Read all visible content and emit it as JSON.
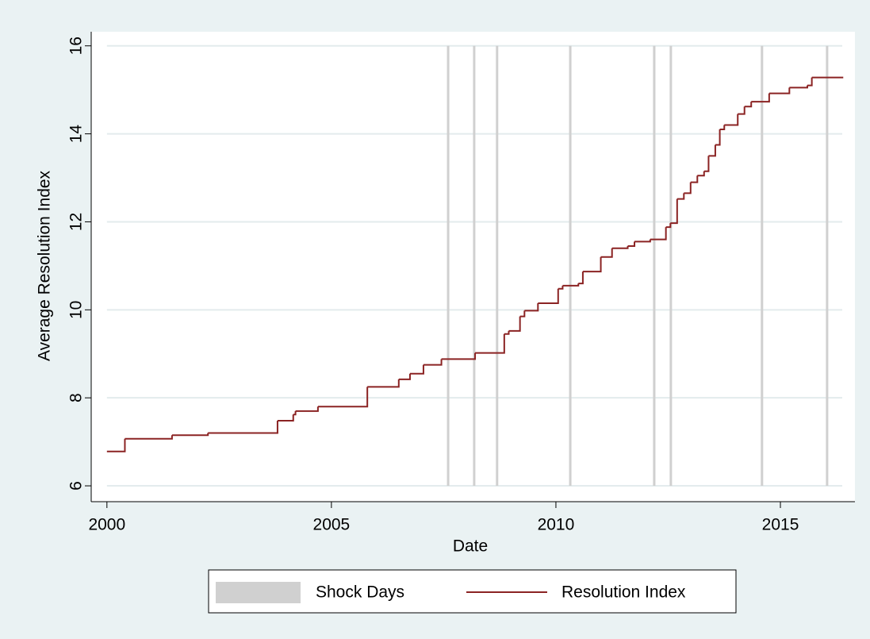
{
  "chart_data": {
    "type": "step",
    "x_label": "Date",
    "y_label": "Average Resolution Index",
    "xlim": [
      1999.65,
      2016.66
    ],
    "ylim": [
      5.64,
      16.32
    ],
    "xticks": [
      2000,
      2005,
      2010,
      2015
    ],
    "yticks": [
      6,
      8,
      10,
      12,
      14,
      16
    ],
    "grid": true,
    "shock_days": {
      "name": "Shock Days",
      "color": "#d0d0d0",
      "x": [
        2007.6,
        2008.18,
        2008.69,
        2010.32,
        2012.19,
        2012.56,
        2014.59,
        2016.04
      ]
    },
    "series": [
      {
        "name": "Resolution Index",
        "color": "#8b2323",
        "x": [
          2000.0,
          2000.4,
          2001.45,
          2002.25,
          2003.8,
          2004.15,
          2004.2,
          2004.7,
          2005.8,
          2006.5,
          2006.75,
          2007.05,
          2007.45,
          2008.2,
          2008.85,
          2008.95,
          2009.2,
          2009.3,
          2009.6,
          2010.05,
          2010.15,
          2010.5,
          2010.6,
          2011.0,
          2011.25,
          2011.6,
          2011.75,
          2012.1,
          2012.45,
          2012.55,
          2012.7,
          2012.85,
          2013.0,
          2013.15,
          2013.3,
          2013.4,
          2013.55,
          2013.65,
          2013.75,
          2014.05,
          2014.2,
          2014.35,
          2014.75,
          2015.2,
          2015.6,
          2015.7,
          2016.4
        ],
        "values": [
          6.78,
          7.07,
          7.15,
          7.2,
          7.48,
          7.62,
          7.7,
          7.8,
          8.25,
          8.42,
          8.55,
          8.75,
          8.88,
          9.02,
          9.45,
          9.52,
          9.85,
          9.98,
          10.15,
          10.48,
          10.55,
          10.6,
          10.87,
          11.2,
          11.4,
          11.45,
          11.55,
          11.6,
          11.88,
          11.97,
          12.52,
          12.65,
          12.9,
          13.05,
          13.15,
          13.5,
          13.75,
          14.1,
          14.2,
          14.45,
          14.62,
          14.73,
          14.92,
          15.05,
          15.1,
          15.28,
          15.28
        ]
      }
    ],
    "legend": "bottom"
  }
}
